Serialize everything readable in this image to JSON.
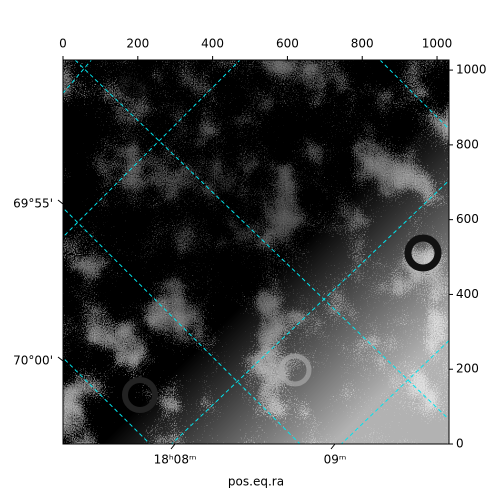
{
  "chart_data": {
    "type": "image",
    "xlabel": "pos.eq.ra",
    "xlim": [
      0,
      1032
    ],
    "xticks": [
      0,
      200,
      400,
      600,
      800,
      1000
    ],
    "ylim": [
      0,
      1027
    ],
    "yticks": [
      0,
      200,
      400,
      600,
      800,
      1000
    ],
    "ra_ticks": [
      {
        "value": 8,
        "label": "18ʰ08ᵐ"
      },
      {
        "value": 9,
        "label": "09ᵐ"
      }
    ],
    "dec_ticks": [
      {
        "value": 55,
        "label": "69°55'"
      },
      {
        "value": 60,
        "label": "70°00'"
      }
    ],
    "grid_color": "#00e5ee"
  }
}
